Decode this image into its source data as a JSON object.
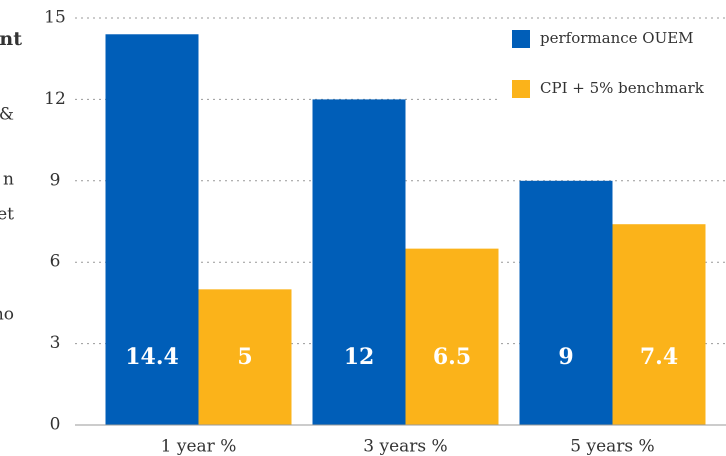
{
  "chart_data": {
    "type": "bar",
    "categories": [
      "1 year %",
      "3 years %",
      "5 years %"
    ],
    "series": [
      {
        "name": "performance OUEM",
        "color": "#005eb8",
        "values": [
          14.4,
          12,
          9
        ]
      },
      {
        "name": "CPI + 5% benchmark",
        "color": "#fbb31a",
        "values": [
          5,
          6.5,
          7.4
        ]
      }
    ],
    "ylim": [
      0,
      15
    ],
    "yticks": [
      0,
      3,
      6,
      9,
      12,
      15
    ],
    "grid": true,
    "legend": "top-right",
    "side_text": [
      "nt",
      "&",
      "n",
      "et",
      "no"
    ]
  }
}
